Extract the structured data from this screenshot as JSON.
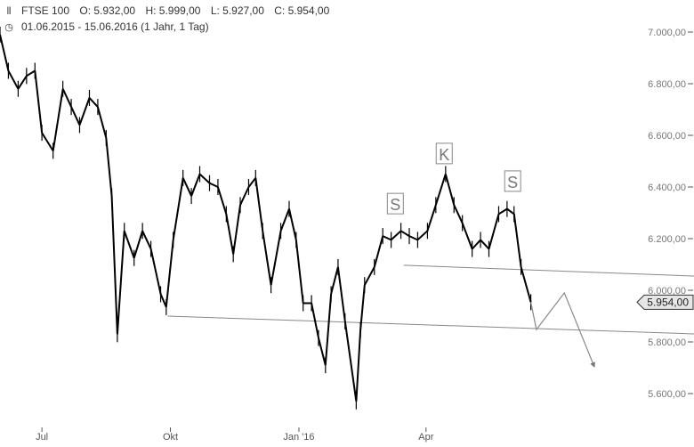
{
  "header": {
    "icon": "candlestick-chart-icon",
    "symbol": "FTSE 100",
    "open": "O: 5.932,00",
    "high": "H: 5.999,00",
    "low": "L: 5.927,00",
    "close": "C: 5.954,00",
    "range_icon": "clock-icon",
    "range": "01.06.2015 - 15.06.2016 (1 Jahr, 1 Tag)"
  },
  "chart_data": {
    "type": "line",
    "title": "FTSE 100",
    "xlabel": "",
    "ylabel": "",
    "ylim": [
      5500,
      7050
    ],
    "xlim": [
      "2015-06-01",
      "2016-08-20"
    ],
    "y_ticks": [
      {
        "value": 7000,
        "label": "7.000,00"
      },
      {
        "value": 6800,
        "label": "6.800,00"
      },
      {
        "value": 6600,
        "label": "6.600,00"
      },
      {
        "value": 6400,
        "label": "6.400,00"
      },
      {
        "value": 6200,
        "label": "6.200,00"
      },
      {
        "value": 6000,
        "label": "6.000,00"
      },
      {
        "value": 5800,
        "label": "5.800,00"
      },
      {
        "value": 5600,
        "label": "5.600,00"
      }
    ],
    "x_ticks": [
      {
        "date": "2015-07-01",
        "label": "Jul"
      },
      {
        "date": "2015-10-01",
        "label": "Okt"
      },
      {
        "date": "2016-01-01",
        "label": "Jan '16"
      },
      {
        "date": "2016-04-01",
        "label": "Apr"
      }
    ],
    "last_price": {
      "value": 5954,
      "label": "5.954,00"
    },
    "grid": false,
    "colors": {
      "price": "#000000",
      "annotation": "#888888",
      "axis_text": "#777777"
    },
    "series": [
      {
        "x": [
          "2015-06-01",
          "2015-06-07",
          "2015-06-14",
          "2015-06-20",
          "2015-06-26",
          "2015-07-01",
          "2015-07-09",
          "2015-07-16",
          "2015-07-22",
          "2015-07-28",
          "2015-08-04",
          "2015-08-10",
          "2015-08-16",
          "2015-08-20",
          "2015-08-24",
          "2015-08-29",
          "2015-09-05",
          "2015-09-11",
          "2015-09-17",
          "2015-09-24",
          "2015-09-28",
          "2015-10-03",
          "2015-10-10",
          "2015-10-16",
          "2015-10-22",
          "2015-10-29",
          "2015-11-04",
          "2015-11-10",
          "2015-11-15",
          "2015-11-20",
          "2015-11-26",
          "2015-12-01",
          "2015-12-06",
          "2015-12-12",
          "2015-12-19",
          "2015-12-25",
          "2015-12-30",
          "2016-01-04",
          "2016-01-10",
          "2016-01-15",
          "2016-01-20",
          "2016-01-24",
          "2016-01-29",
          "2016-02-03",
          "2016-02-11",
          "2016-02-14",
          "2016-02-17",
          "2016-02-24",
          "2016-03-01",
          "2016-03-07",
          "2016-03-14",
          "2016-03-20",
          "2016-03-26",
          "2016-04-02",
          "2016-04-08",
          "2016-04-15",
          "2016-04-21",
          "2016-04-27",
          "2016-05-04",
          "2016-05-10",
          "2016-05-16",
          "2016-05-23",
          "2016-05-29",
          "2016-06-03",
          "2016-06-08",
          "2016-06-15"
        ],
        "values": [
          6990,
          6850,
          6780,
          6830,
          6850,
          6610,
          6540,
          6780,
          6710,
          6640,
          6745,
          6710,
          6590,
          6365,
          5830,
          6230,
          6125,
          6230,
          6160,
          5985,
          5935,
          6195,
          6435,
          6365,
          6450,
          6415,
          6400,
          6295,
          6140,
          6330,
          6400,
          6435,
          6230,
          6020,
          6230,
          6315,
          6195,
          5950,
          5950,
          5815,
          5710,
          5985,
          6090,
          5880,
          5570,
          5845,
          6020,
          6090,
          6210,
          6195,
          6230,
          6210,
          6195,
          6230,
          6330,
          6450,
          6330,
          6260,
          6160,
          6195,
          6160,
          6295,
          6315,
          6295,
          6090,
          5954
        ]
      }
    ],
    "annotations": {
      "pattern_labels": [
        {
          "label": "S",
          "date": "2016-03-10",
          "value": 6334
        },
        {
          "label": "K",
          "date": "2016-04-14",
          "value": 6528
        },
        {
          "label": "S",
          "date": "2016-06-02",
          "value": 6421
        }
      ],
      "trendlines": [
        {
          "from": {
            "date": "2016-03-16",
            "value": 6097
          },
          "to": {
            "date": "2016-10-10",
            "value": 6055
          }
        },
        {
          "from": {
            "date": "2015-09-29",
            "value": 5900
          },
          "to": {
            "date": "2016-10-10",
            "value": 5831
          }
        }
      ],
      "projection": [
        {
          "date": "2016-06-15",
          "value": 5954
        },
        {
          "date": "2016-06-19",
          "value": 5848
        },
        {
          "date": "2016-07-09",
          "value": 5990
        },
        {
          "date": "2016-07-30",
          "value": 5710
        }
      ]
    }
  }
}
